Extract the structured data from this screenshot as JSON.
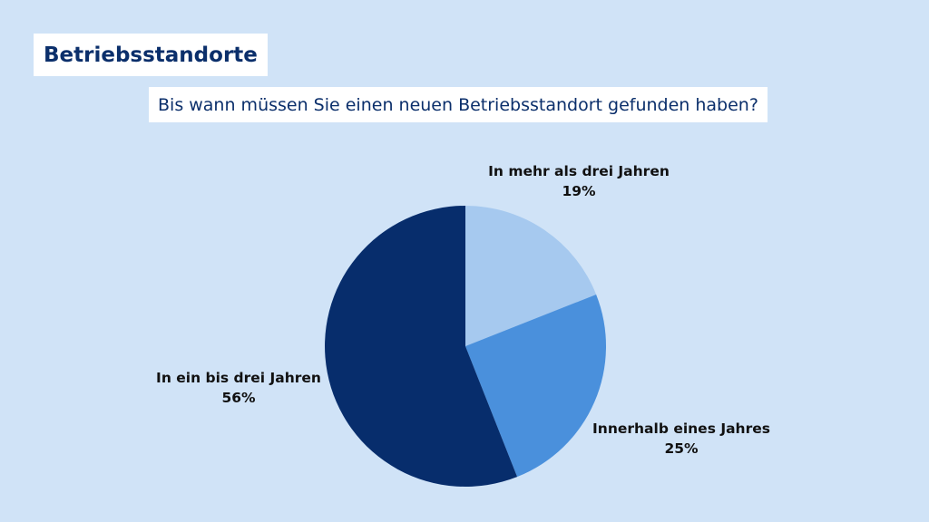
{
  "header": {
    "title": "Betriebsstandorte",
    "question": "Bis wann müssen Sie einen neuen Betriebsstandort gefunden haben?"
  },
  "chart_data": {
    "type": "pie",
    "title": "Betriebsstandorte",
    "subtitle": "Bis wann müssen Sie einen neuen Betriebsstandort gefunden haben?",
    "start_angle_deg": 0,
    "direction": "clockwise",
    "slices": [
      {
        "label": "In mehr als drei Jahren",
        "value": 19,
        "value_label": "19%",
        "color": "#a6c9ef"
      },
      {
        "label": "Innerhalb eines Jahres",
        "value": 25,
        "value_label": "25%",
        "color": "#4a90dc"
      },
      {
        "label": "In ein bis drei Jahren",
        "value": 56,
        "value_label": "56%",
        "color": "#072d6c"
      }
    ]
  },
  "colors": {
    "background": "#d0e3f7",
    "title_text": "#0b2f6b",
    "label_text": "#111111"
  }
}
